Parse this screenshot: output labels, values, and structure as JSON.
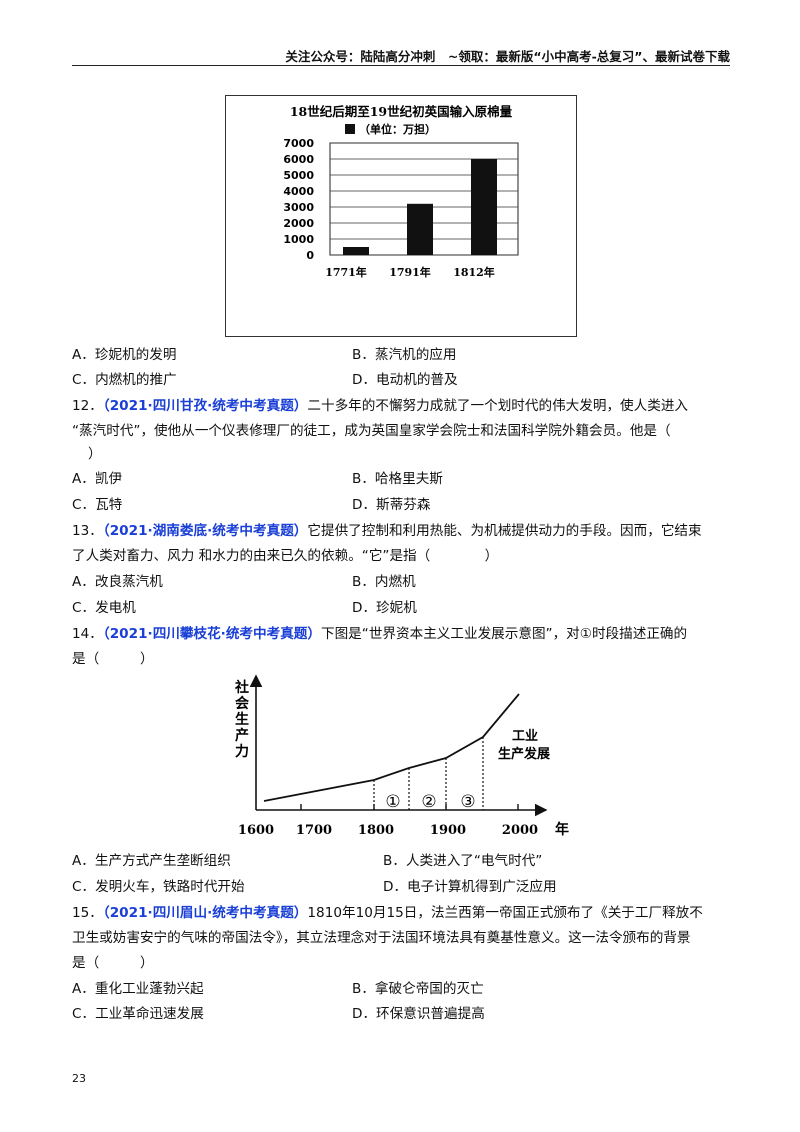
{
  "header": "关注公众号：陆陆高分冲刺　~领取：最新版“小中高考-总复习”、最新试卷下载",
  "chart1": {
    "title": "18世纪后期至19世纪初英国输入原棉量",
    "legend": "（单位：万担）",
    "chart_data": {
      "type": "bar",
      "title": "18世纪后期至19世纪初英国输入原棉量",
      "legend": "（单位：万担）",
      "categories": [
        "1771年",
        "1791年",
        "1812年"
      ],
      "values": [
        500,
        3200,
        6000
      ],
      "yticks": [
        "7000",
        "6000",
        "5000",
        "4000",
        "3000",
        "2000",
        "1000",
        "0"
      ],
      "ylim": [
        0,
        7000
      ],
      "grid": true
    }
  },
  "q11": {
    "A": "A．珍妮机的发明",
    "B": "B．蒸汽机的应用",
    "C": "C．内燃机的推广",
    "D": "D．电动机的普及"
  },
  "q12": {
    "num": "12．",
    "source": "（2021·四川甘孜·统考中考真题）",
    "text1": "二十多年的不懈努力成就了一个划时代的伟大发明，使人类进入",
    "text2": "“蒸汽时代”，使他从一个仪表修理厂的徒工，成为英国皇家学会院士和法国科学院外籍会员。他是（",
    "text3": "）",
    "A": "A．凯伊",
    "B": "B．哈格里夫斯",
    "C": "C．瓦特",
    "D": "D．斯蒂芬森"
  },
  "q13": {
    "num": "13．",
    "source": "（2021·湖南娄底·统考中考真题）",
    "text1": "它提供了控制和利用热能、为机械提供动力的手段。因而，它结束",
    "text2": "了人类对畜力、风力  和水力的由来已久的依赖。“它”是指（　　　　）",
    "A": "A．改良蒸汽机",
    "B": "B．内燃机",
    "C": "C．发电机",
    "D": "D．珍妮机"
  },
  "q14": {
    "num": "14．",
    "source": "（2021·四川攀枝花·统考中考真题）",
    "text1": "下图是“世界资本主义工业发展示意图”，对①时段描述正确的",
    "text2": "是（　　　）",
    "chart": {
      "ylabel": "社会生产力",
      "curve_label1": "工业",
      "curve_label2": "生产发展",
      "xticks": [
        "1600",
        "1700",
        "1800",
        "1900",
        "2000"
      ],
      "xunit": "年",
      "segments": [
        "①",
        "②",
        "③"
      ]
    },
    "A": "A．生产方式产生垄断组织",
    "B": "B．人类进入了“电气时代”",
    "C": "C．发明火车，铁路时代开始",
    "D": "D．电子计算机得到广泛应用"
  },
  "q15": {
    "num": "15．",
    "source": "（2021·四川眉山·统考中考真题）",
    "text1": "1810年10月15日，法兰西第一帝国正式颁布了《关于工厂释放不",
    "text2": "卫生或妨害安宁的气味的帝国法令》，其立法理念对于法国环境法具有奠基性意义。这一法令颁布的背景",
    "text3": "是（　　　）",
    "A": "A．重化工业蓬勃兴起",
    "B": "B．拿破仑帝国的灭亡",
    "C": "C．工业革命迅速发展",
    "D": "D．环保意识普遍提高"
  },
  "page_number": "23"
}
